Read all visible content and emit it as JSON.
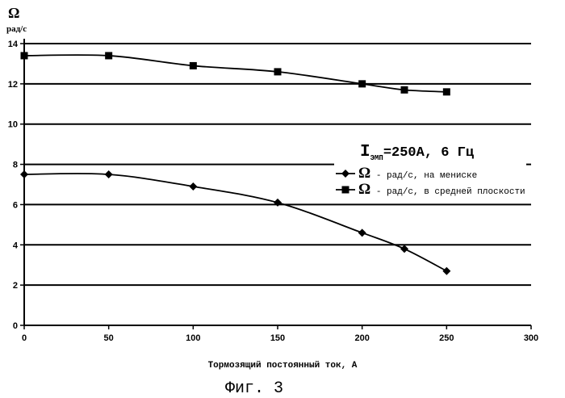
{
  "chart_data": {
    "type": "line",
    "title": "",
    "caption": "Фиг. 3",
    "condition": {
      "symbol": "I",
      "subscript": "ЭМП",
      "rest": "=250А, 6 Гц"
    },
    "ylabel_symbol": "Ω",
    "ylabel_unit": "рад/с",
    "xlabel": "Тормозящий постоянный ток, А",
    "xlim": [
      0,
      300
    ],
    "ylim": [
      0,
      14
    ],
    "x_ticks": [
      0,
      50,
      100,
      150,
      200,
      250,
      300
    ],
    "y_ticks": [
      0,
      2,
      4,
      6,
      8,
      10,
      12,
      14
    ],
    "grid": "horizontal",
    "legend_position": "right",
    "series": [
      {
        "symbol": "Ω",
        "name": " - рад/с, на мениске",
        "marker": "diamond",
        "color": "#000000",
        "x": [
          0,
          50,
          100,
          150,
          200,
          225,
          250
        ],
        "y": [
          7.5,
          7.5,
          6.9,
          6.1,
          4.6,
          3.8,
          2.7
        ]
      },
      {
        "symbol": "Ω",
        "name": " - рад/с, в средней плоскости",
        "marker": "square",
        "color": "#000000",
        "x": [
          0,
          50,
          100,
          150,
          200,
          225,
          250
        ],
        "y": [
          13.4,
          13.4,
          12.9,
          12.6,
          12.0,
          11.7,
          11.6
        ]
      }
    ]
  }
}
